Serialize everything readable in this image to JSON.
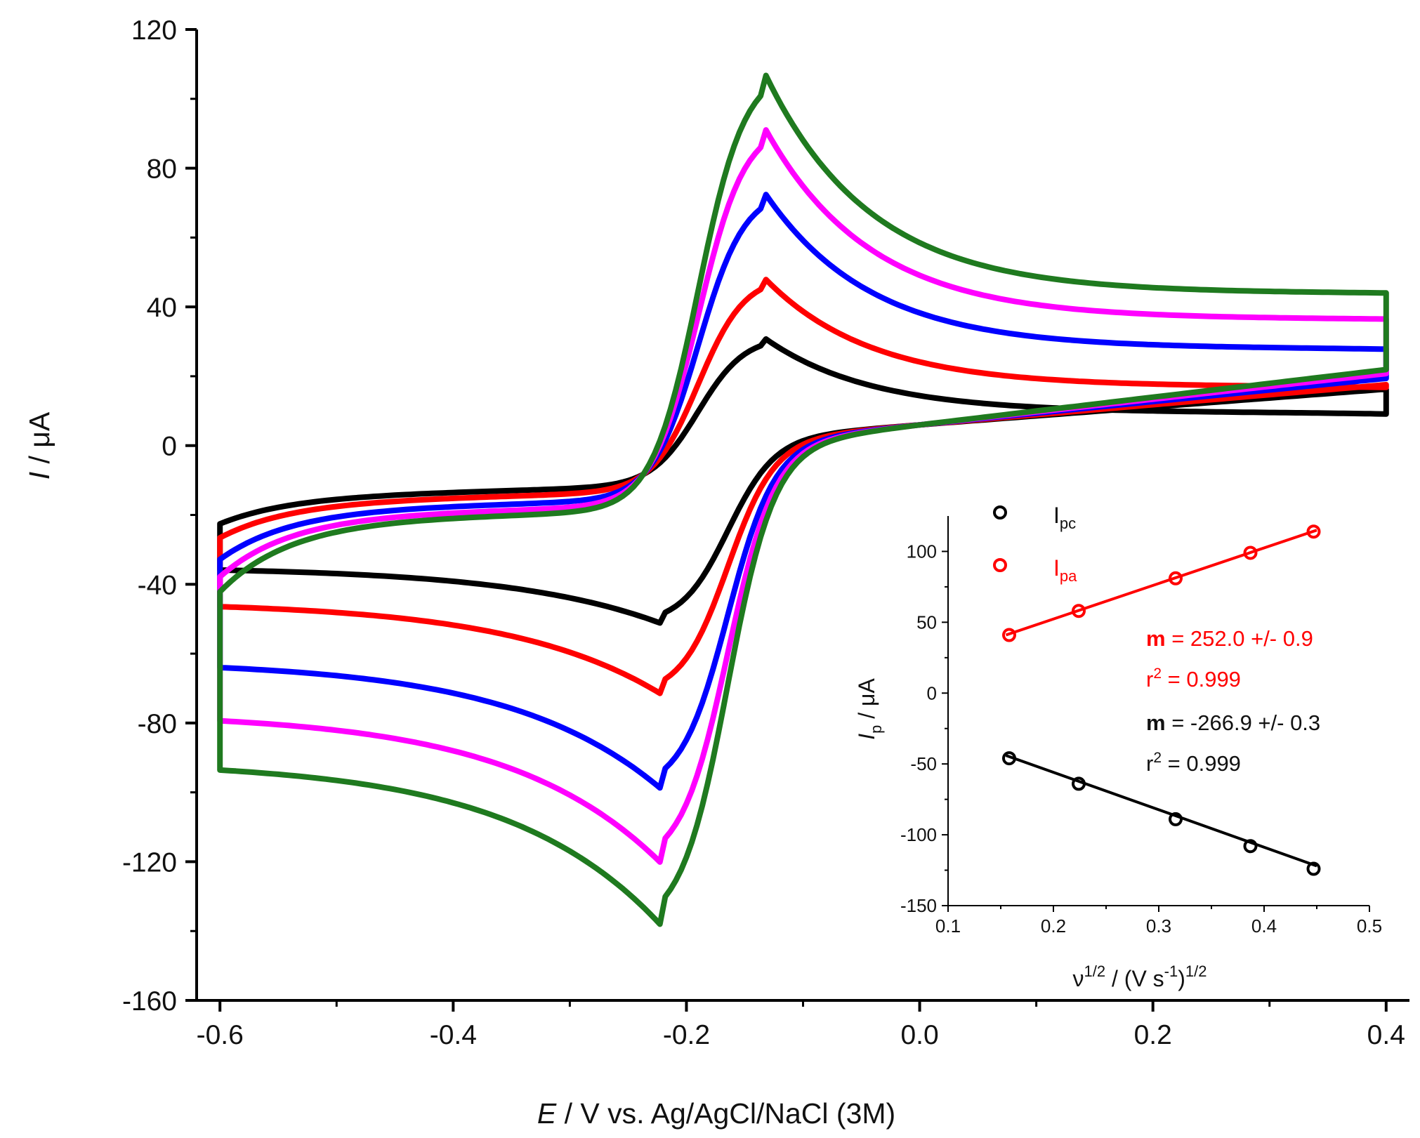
{
  "chart_data": [
    {
      "type": "line",
      "name": "main-cv",
      "xlabel_italic": "E",
      "xlabel_rest": " / V vs. Ag/AgCl/NaCl (3M)",
      "ylabel_italic": "I",
      "ylabel_rest": " / μA",
      "xlim": [
        -0.62,
        0.42
      ],
      "ylim": [
        -160,
        120
      ],
      "xticks": [
        -0.6,
        -0.4,
        -0.2,
        0.0,
        0.2,
        0.4
      ],
      "xtick_labels": [
        "-0.6",
        "-0.4",
        "-0.2",
        "0.0",
        "0.2",
        "0.4"
      ],
      "yticks": [
        -160,
        -120,
        -80,
        -40,
        0,
        40,
        80,
        120
      ],
      "ytick_labels": [
        "-160",
        "-120",
        "-80",
        "-40",
        "0",
        "40",
        "80",
        "120"
      ],
      "series": [
        {
          "name": "cv-1",
          "color": "#000000",
          "ipa": 31.5,
          "ipc": -51.5,
          "anodic_plateau": 9.5,
          "cathodic_plateau": -35,
          "neg_vertex": -35,
          "pos_vertex": 8
        },
        {
          "name": "cv-2",
          "color": "#ff0000",
          "ipa": 49,
          "ipc": -72,
          "anodic_plateau": 17,
          "cathodic_plateau": -45,
          "neg_vertex": -46,
          "pos_vertex": 16
        },
        {
          "name": "cv-3",
          "color": "#0000ff",
          "ipa": 74,
          "ipc": -99.5,
          "anodic_plateau": 28,
          "cathodic_plateau": -62,
          "neg_vertex": -64,
          "pos_vertex": 27
        },
        {
          "name": "cv-4",
          "color": "#ff00ff",
          "ipa": 93,
          "ipc": -121,
          "anodic_plateau": 36.5,
          "cathodic_plateau": -77,
          "neg_vertex": -79,
          "pos_vertex": 36
        },
        {
          "name": "cv-5",
          "color": "#1f7a1f",
          "ipa": 109,
          "ipc": -139,
          "anodic_plateau": 44,
          "cathodic_plateau": -91,
          "neg_vertex": -92,
          "pos_vertex": 43.5
        }
      ]
    },
    {
      "type": "scatter",
      "name": "inset",
      "xlabel": "ν",
      "xlabel_sup1": "1/2",
      "xlabel_mid": " / (V s",
      "xlabel_sup2": "-1",
      "xlabel_end": ")",
      "xlabel_sup3": "1/2",
      "ylabel_italic": "I",
      "ylabel_sub": "p",
      "ylabel_rest": " / μA",
      "xlim": [
        0.1,
        0.5
      ],
      "ylim": [
        -150,
        125
      ],
      "xticks": [
        0.1,
        0.2,
        0.3,
        0.4,
        0.5
      ],
      "xtick_labels": [
        "0.1",
        "0.2",
        "0.3",
        "0.4",
        "0.5"
      ],
      "yticks": [
        -150,
        -100,
        -50,
        0,
        50,
        100
      ],
      "ytick_labels": [
        "-150",
        "-100",
        "-50",
        "0",
        "50",
        "100"
      ],
      "legend": [
        {
          "main": "I",
          "sub": "pc",
          "color": "#000000"
        },
        {
          "main": "I",
          "sub": "pa",
          "color": "#ff0000"
        }
      ],
      "series": [
        {
          "name": "Ipc",
          "color": "#000000",
          "x": [
            0.158,
            0.224,
            0.316,
            0.387,
            0.447
          ],
          "y": [
            -46,
            -64,
            -89,
            -108,
            -124
          ],
          "fit": {
            "x": [
              0.155,
              0.45
            ],
            "y": [
              -44,
              -122
            ]
          }
        },
        {
          "name": "Ipa",
          "color": "#ff0000",
          "x": [
            0.158,
            0.224,
            0.316,
            0.387,
            0.447
          ],
          "y": [
            41,
            58,
            81,
            99,
            114
          ],
          "fit": {
            "x": [
              0.155,
              0.45
            ],
            "y": [
              41,
              115
            ]
          }
        }
      ],
      "annotations": [
        {
          "bold": "m",
          "rest": " = 252.0 +/- 0.9",
          "color": "#ff0000"
        },
        {
          "pre": "r",
          "sup": "2",
          "rest": " = 0.999",
          "color": "#ff0000"
        },
        {
          "bold": "m",
          "rest": " = -266.9 +/- 0.3",
          "color": "#000000"
        },
        {
          "pre": "r",
          "sup": "2",
          "rest": " = 0.999",
          "color": "#000000"
        }
      ]
    }
  ]
}
